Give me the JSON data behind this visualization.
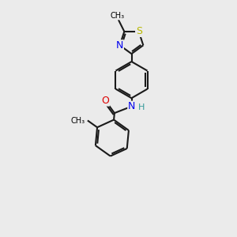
{
  "bg_color": "#ebebeb",
  "bond_color": "#1a1a1a",
  "bond_width": 1.5,
  "atom_colors": {
    "S": "#b8b800",
    "N": "#0000ee",
    "O": "#dd0000",
    "H": "#339999"
  },
  "font_size": 9
}
